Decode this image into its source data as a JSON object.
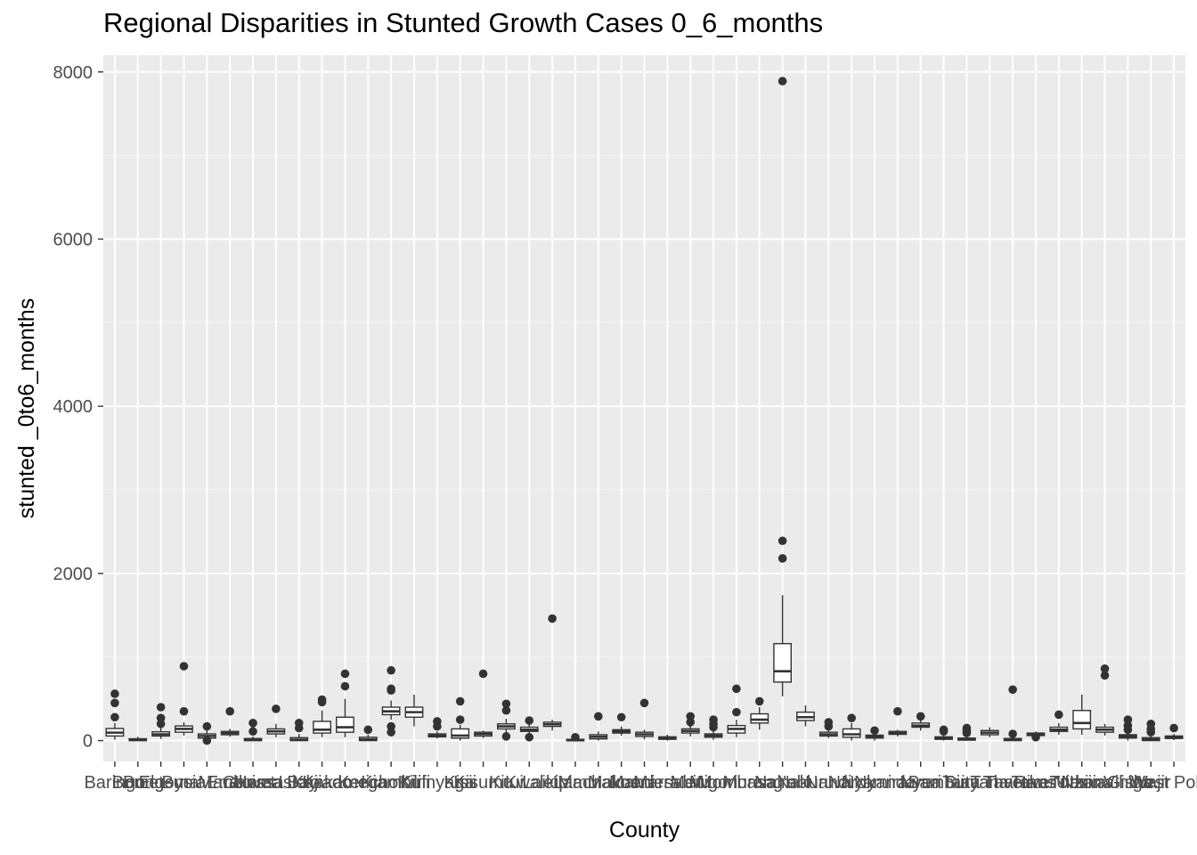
{
  "chart_data": {
    "type": "boxplot",
    "title": "Regional Disparities in Stunted Growth Cases 0_6_months",
    "xlabel": "County",
    "ylabel": "stunted _0to6_months",
    "ylim": [
      -250,
      8200
    ],
    "yticks": [
      0,
      2000,
      4000,
      6000,
      8000
    ],
    "grid": true,
    "legend": "none",
    "colors": {
      "panel": "#ebebeb",
      "grid_major": "#ffffff",
      "box_fill": "#ffffff",
      "box_line": "#333333",
      "text": "#4d4d4d"
    },
    "category_labels_visible": [
      "Baringo",
      "Bomet",
      "Bungoma",
      "Busia",
      "Elgeyo Marakwet",
      "Embu",
      "Garissa",
      "Homa Bay",
      "Isiolo",
      "Kajiado",
      "Kakamega",
      "Kericho",
      "Kiambu",
      "Kilifi",
      "Kirinyaga",
      "Kisii",
      "Kisumu",
      "Kitui",
      "Kwale",
      "Laikipia",
      "Lamu",
      "Machakos",
      "Makueni",
      "Mandera",
      "Marsabit",
      "Meru",
      "Migori",
      "Mombasa",
      "Murang'a",
      "Nairobi",
      "Nakuru",
      "Nandi",
      "Narok",
      "Nyamira",
      "Nyandarua",
      "Nyeri",
      "Samburu",
      "Siaya",
      "Taita Taveta",
      "Tana River",
      "Tharaka Nithi",
      "Trans Nzoia",
      "Turkana",
      "Uasin Gishu",
      "Vihiga",
      "Wajir",
      "West Pokot"
    ],
    "series": [
      {
        "q1": 55,
        "median": 95,
        "q3": 145,
        "whisker_low": 10,
        "whisker_high": 210,
        "outliers": [
          280,
          450,
          560
        ]
      },
      {
        "q1": 0,
        "median": 8,
        "q3": 22,
        "whisker_low": 0,
        "whisker_high": 45,
        "outliers": []
      },
      {
        "q1": 55,
        "median": 75,
        "q3": 105,
        "whisker_low": 20,
        "whisker_high": 150,
        "outliers": [
          200,
          270,
          400
        ]
      },
      {
        "q1": 100,
        "median": 140,
        "q3": 175,
        "whisker_low": 60,
        "whisker_high": 220,
        "outliers": [
          350,
          890
        ]
      },
      {
        "q1": 30,
        "median": 55,
        "q3": 80,
        "whisker_low": 0,
        "whisker_high": 130,
        "outliers": [
          0,
          170
        ]
      },
      {
        "q1": 70,
        "median": 90,
        "q3": 110,
        "whisker_low": 45,
        "whisker_high": 140,
        "outliers": [
          350
        ]
      },
      {
        "q1": 0,
        "median": 8,
        "q3": 25,
        "whisker_low": 0,
        "whisker_high": 50,
        "outliers": [
          110,
          210
        ]
      },
      {
        "q1": 80,
        "median": 110,
        "q3": 140,
        "whisker_low": 40,
        "whisker_high": 200,
        "outliers": [
          380
        ]
      },
      {
        "q1": 0,
        "median": 10,
        "q3": 35,
        "whisker_low": 0,
        "whisker_high": 80,
        "outliers": [
          150,
          210
        ]
      },
      {
        "q1": 90,
        "median": 130,
        "q3": 230,
        "whisker_low": 40,
        "whisker_high": 360,
        "outliers": [
          460,
          490
        ]
      },
      {
        "q1": 100,
        "median": 160,
        "q3": 280,
        "whisker_low": 40,
        "whisker_high": 500,
        "outliers": [
          650,
          800
        ]
      },
      {
        "q1": 0,
        "median": 15,
        "q3": 40,
        "whisker_low": 0,
        "whisker_high": 70,
        "outliers": [
          130
        ]
      },
      {
        "q1": 310,
        "median": 350,
        "q3": 400,
        "whisker_low": 250,
        "whisker_high": 480,
        "outliers": [
          100,
          170,
          600,
          620,
          840
        ]
      },
      {
        "q1": 280,
        "median": 340,
        "q3": 400,
        "whisker_low": 170,
        "whisker_high": 550,
        "outliers": []
      },
      {
        "q1": 45,
        "median": 60,
        "q3": 80,
        "whisker_low": 25,
        "whisker_high": 110,
        "outliers": [
          170,
          230
        ]
      },
      {
        "q1": 30,
        "median": 60,
        "q3": 140,
        "whisker_low": 0,
        "whisker_high": 190,
        "outliers": [
          250,
          470
        ]
      },
      {
        "q1": 55,
        "median": 80,
        "q3": 100,
        "whisker_low": 30,
        "whisker_high": 120,
        "outliers": [
          800
        ]
      },
      {
        "q1": 140,
        "median": 170,
        "q3": 200,
        "whisker_low": 80,
        "whisker_high": 260,
        "outliers": [
          50,
          360,
          440
        ]
      },
      {
        "q1": 110,
        "median": 130,
        "q3": 160,
        "whisker_low": 60,
        "whisker_high": 200,
        "outliers": [
          40,
          240
        ]
      },
      {
        "q1": 170,
        "median": 195,
        "q3": 220,
        "whisker_low": 120,
        "whisker_high": 250,
        "outliers": [
          1460
        ]
      },
      {
        "q1": 0,
        "median": 5,
        "q3": 15,
        "whisker_low": 0,
        "whisker_high": 30,
        "outliers": [
          40
        ]
      },
      {
        "q1": 20,
        "median": 45,
        "q3": 70,
        "whisker_low": 0,
        "whisker_high": 110,
        "outliers": [
          290
        ]
      },
      {
        "q1": 90,
        "median": 110,
        "q3": 130,
        "whisker_low": 60,
        "whisker_high": 170,
        "outliers": [
          280
        ]
      },
      {
        "q1": 50,
        "median": 75,
        "q3": 100,
        "whisker_low": 15,
        "whisker_high": 130,
        "outliers": [
          450
        ]
      },
      {
        "q1": 15,
        "median": 30,
        "q3": 45,
        "whisker_low": 0,
        "whisker_high": 70,
        "outliers": []
      },
      {
        "q1": 90,
        "median": 115,
        "q3": 140,
        "whisker_low": 50,
        "whisker_high": 190,
        "outliers": [
          220,
          290
        ]
      },
      {
        "q1": 40,
        "median": 60,
        "q3": 80,
        "whisker_low": 10,
        "whisker_high": 120,
        "outliers": [
          160,
          200,
          250
        ]
      },
      {
        "q1": 90,
        "median": 140,
        "q3": 180,
        "whisker_low": 40,
        "whisker_high": 250,
        "outliers": [
          340,
          620
        ]
      },
      {
        "q1": 210,
        "median": 250,
        "q3": 320,
        "whisker_low": 130,
        "whisker_high": 400,
        "outliers": [
          470
        ]
      },
      {
        "q1": 700,
        "median": 830,
        "q3": 1160,
        "whisker_low": 530,
        "whisker_high": 1740,
        "outliers": [
          2180,
          2390,
          7890
        ]
      },
      {
        "q1": 240,
        "median": 280,
        "q3": 340,
        "whisker_low": 170,
        "whisker_high": 420,
        "outliers": []
      },
      {
        "q1": 55,
        "median": 75,
        "q3": 100,
        "whisker_low": 30,
        "whisker_high": 140,
        "outliers": [
          170,
          220
        ]
      },
      {
        "q1": 40,
        "median": 75,
        "q3": 140,
        "whisker_low": 0,
        "whisker_high": 210,
        "outliers": [
          270
        ]
      },
      {
        "q1": 30,
        "median": 45,
        "q3": 65,
        "whisker_low": 0,
        "whisker_high": 100,
        "outliers": [
          120
        ]
      },
      {
        "q1": 75,
        "median": 90,
        "q3": 110,
        "whisker_low": 50,
        "whisker_high": 130,
        "outliers": [
          350
        ]
      },
      {
        "q1": 160,
        "median": 180,
        "q3": 210,
        "whisker_low": 120,
        "whisker_high": 250,
        "outliers": [
          290
        ]
      },
      {
        "q1": 15,
        "median": 30,
        "q3": 45,
        "whisker_low": 0,
        "whisker_high": 70,
        "outliers": [
          110,
          130
        ]
      },
      {
        "q1": 5,
        "median": 15,
        "q3": 30,
        "whisker_low": 0,
        "whisker_high": 60,
        "outliers": [
          90,
          120,
          150
        ]
      },
      {
        "q1": 70,
        "median": 95,
        "q3": 120,
        "whisker_low": 40,
        "whisker_high": 160,
        "outliers": []
      },
      {
        "q1": 0,
        "median": 10,
        "q3": 25,
        "whisker_low": 0,
        "whisker_high": 50,
        "outliers": [
          80,
          610
        ]
      },
      {
        "q1": 60,
        "median": 75,
        "q3": 90,
        "whisker_low": 40,
        "whisker_high": 110,
        "outliers": [
          40
        ]
      },
      {
        "q1": 110,
        "median": 130,
        "q3": 160,
        "whisker_low": 70,
        "whisker_high": 210,
        "outliers": [
          310
        ]
      },
      {
        "q1": 140,
        "median": 210,
        "q3": 360,
        "whisker_low": 70,
        "whisker_high": 550,
        "outliers": []
      },
      {
        "q1": 100,
        "median": 130,
        "q3": 160,
        "whisker_low": 60,
        "whisker_high": 200,
        "outliers": [
          780,
          860
        ]
      },
      {
        "q1": 30,
        "median": 50,
        "q3": 70,
        "whisker_low": 0,
        "whisker_high": 100,
        "outliers": [
          130,
          180,
          250
        ]
      },
      {
        "q1": 0,
        "median": 15,
        "q3": 35,
        "whisker_low": 0,
        "whisker_high": 60,
        "outliers": [
          100,
          140,
          200
        ]
      },
      {
        "q1": 25,
        "median": 40,
        "q3": 55,
        "whisker_low": 5,
        "whisker_high": 80,
        "outliers": [
          150
        ]
      }
    ]
  }
}
